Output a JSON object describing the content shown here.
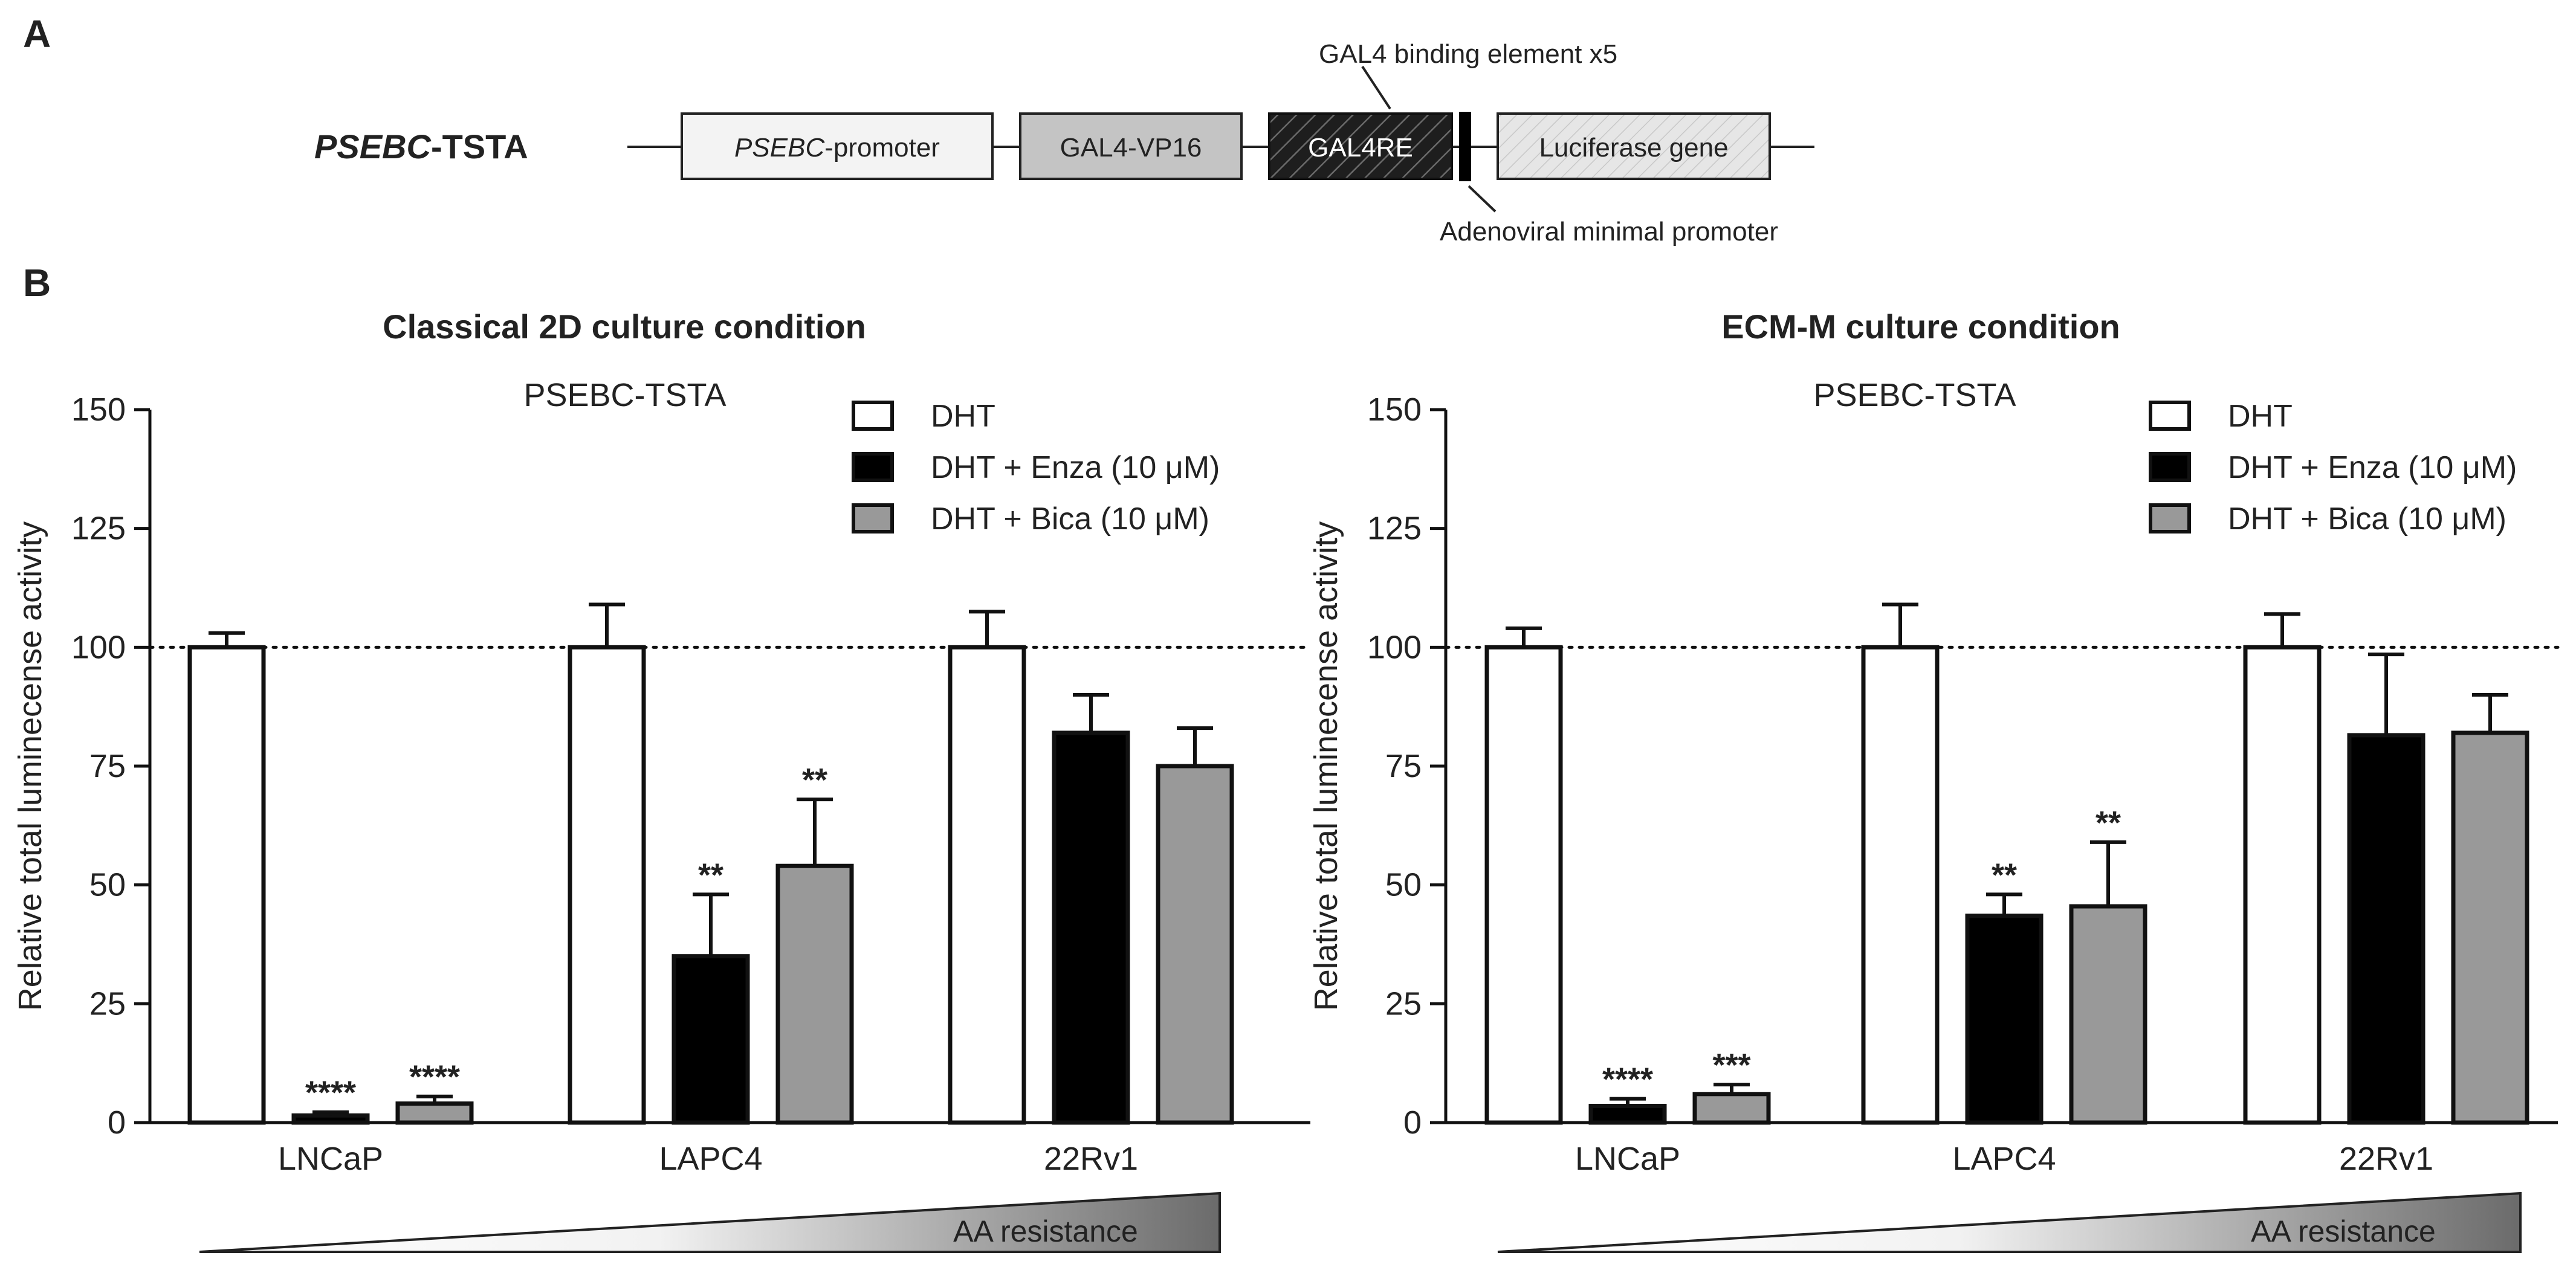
{
  "panel_a": {
    "label": "A",
    "construct_name_italic": "PSEBC",
    "construct_name_rest": "-TSTA",
    "promoter_italic": "PSEBC",
    "promoter_rest": "-promoter",
    "gal4_vp16": "GAL4-VP16",
    "gal4re": "GAL4RE",
    "luciferase": "Luciferase gene",
    "binding_element_label": "GAL4 binding element x5",
    "minimal_promoter_label": "Adenoviral minimal promoter"
  },
  "panel_b": {
    "label": "B",
    "aa_resistance": "AA resistance"
  },
  "chart_data": [
    {
      "type": "bar",
      "title": "Classical 2D culture condition",
      "subtitle": "PSEBC-TSTA",
      "ylabel": "Relative total luminecense activity",
      "xlabel": "",
      "ylim": [
        0,
        150
      ],
      "yticks": [
        "0",
        "25",
        "50",
        "75",
        "100",
        "125",
        "150"
      ],
      "reference_line": 100,
      "categories": [
        "LNCaP",
        "LAPC4",
        "22Rv1"
      ],
      "series": [
        {
          "name": "DHT",
          "color": "#ffffff",
          "values": [
            100,
            100,
            100
          ],
          "errors": [
            3,
            9,
            7.5
          ],
          "significance": [
            "",
            "",
            ""
          ]
        },
        {
          "name": "DHT + Enza (10 μM)",
          "color": "#000000",
          "values": [
            1.5,
            35,
            82
          ],
          "errors": [
            0.7,
            13,
            8
          ],
          "significance": [
            "****",
            "**",
            ""
          ]
        },
        {
          "name": "DHT + Bica (10 μM)",
          "color": "#999999",
          "values": [
            4,
            54,
            75
          ],
          "errors": [
            1.5,
            14,
            8
          ],
          "significance": [
            "****",
            "**",
            ""
          ]
        }
      ]
    },
    {
      "type": "bar",
      "title": "ECM-M culture condition",
      "subtitle": "PSEBC-TSTA",
      "ylabel": "Relative total luminecense activity",
      "xlabel": "",
      "ylim": [
        0,
        150
      ],
      "yticks": [
        "0",
        "25",
        "50",
        "75",
        "100",
        "125",
        "150"
      ],
      "reference_line": 100,
      "categories": [
        "LNCaP",
        "LAPC4",
        "22Rv1"
      ],
      "series": [
        {
          "name": "DHT",
          "color": "#ffffff",
          "values": [
            100,
            100,
            100
          ],
          "errors": [
            4,
            9,
            7
          ],
          "significance": [
            "",
            "",
            ""
          ]
        },
        {
          "name": "DHT + Enza (10 μM)",
          "color": "#000000",
          "values": [
            3.5,
            43.5,
            81.5
          ],
          "errors": [
            1.5,
            4.5,
            17
          ],
          "significance": [
            "****",
            "**",
            ""
          ]
        },
        {
          "name": "DHT + Bica (10 μM)",
          "color": "#999999",
          "values": [
            6,
            45.5,
            82
          ],
          "errors": [
            2,
            13.5,
            8
          ],
          "significance": [
            "***",
            "**",
            ""
          ]
        }
      ]
    }
  ]
}
